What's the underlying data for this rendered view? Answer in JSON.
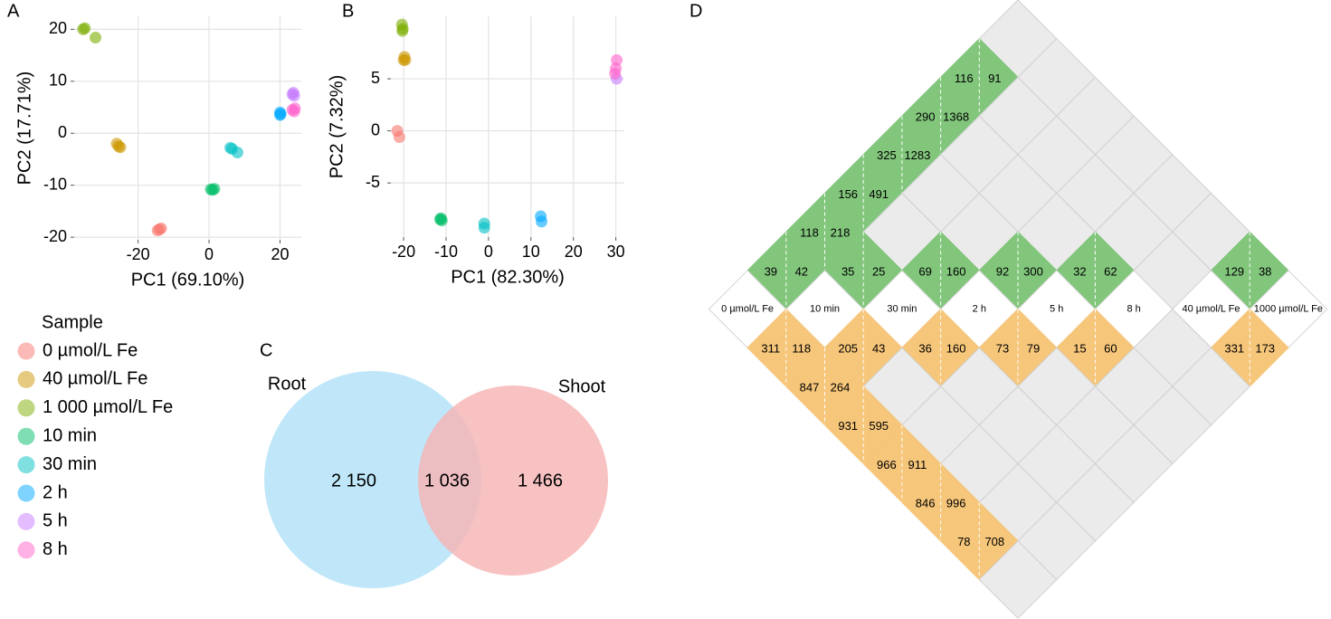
{
  "chart_data": [
    {
      "panel": "A",
      "type": "scatter",
      "x_label": "PC1 (69.10%)",
      "y_label": "PC2 (17.71%)",
      "xlim": [
        -38,
        26
      ],
      "ylim": [
        -20.5,
        22.5
      ],
      "xticks": [
        -20,
        0,
        20
      ],
      "yticks": [
        -20,
        -10,
        0,
        10,
        20
      ],
      "grid": true,
      "legend_title": "Sample",
      "series": [
        {
          "name": "0 µmol/L Fe",
          "color": "#F8766D",
          "x": [
            -14,
            -14.5,
            -13.5
          ],
          "values": [
            -18.5,
            -18.7,
            -18.3
          ]
        },
        {
          "name": "40 µmol/L Fe",
          "color": "#CD9600",
          "x": [
            -26,
            -25.5,
            -25
          ],
          "values": [
            -2,
            -2.5,
            -2.7
          ]
        },
        {
          "name": "1 000 µmol/L Fe",
          "color": "#7CAE00",
          "x": [
            -35.5,
            -35,
            -32
          ],
          "values": [
            20,
            20.2,
            18.4
          ]
        },
        {
          "name": "10 min",
          "color": "#00BE67",
          "x": [
            0.5,
            1,
            1.5
          ],
          "values": [
            -10.8,
            -10.9,
            -10.7
          ]
        },
        {
          "name": "30 min",
          "color": "#00BFC4",
          "x": [
            6,
            6.5,
            8
          ],
          "values": [
            -2.8,
            -3,
            -3.7
          ]
        },
        {
          "name": "2 h",
          "color": "#00A9FF",
          "x": [
            20,
            20,
            20.2
          ],
          "values": [
            3.5,
            4,
            3.7
          ]
        },
        {
          "name": "5 h",
          "color": "#C77CFF",
          "x": [
            23.8,
            24,
            23.5
          ],
          "values": [
            7.8,
            7.2,
            7.5
          ]
        },
        {
          "name": "8 h",
          "color": "#FF61CC",
          "x": [
            23.5,
            24,
            24.2
          ],
          "values": [
            4.5,
            4.2,
            4.8
          ]
        }
      ]
    },
    {
      "panel": "B",
      "type": "scatter",
      "x_label": "PC1 (82.30%)",
      "y_label": "PC2 (7.32%)",
      "xlim": [
        -23,
        32
      ],
      "ylim": [
        -10.2,
        11
      ],
      "xticks": [
        -20,
        -10,
        0,
        10,
        20,
        30
      ],
      "yticks": [
        -5,
        0,
        5
      ],
      "grid": true,
      "series": [
        {
          "color": "#F8766D",
          "x": [
            -21.5,
            -21
          ],
          "values": [
            0,
            -0.6
          ]
        },
        {
          "color": "#CD9600",
          "x": [
            -20,
            -19.8,
            -19.6
          ],
          "values": [
            6.8,
            7.1,
            6.8
          ]
        },
        {
          "color": "#7CAE00",
          "x": [
            -20.4,
            -20.2,
            -20.3
          ],
          "values": [
            10.2,
            9.8,
            9.6
          ]
        },
        {
          "color": "#00BE67",
          "x": [
            -11.4,
            -11,
            -11.2
          ],
          "values": [
            -8.5,
            -8.6,
            -8.4
          ]
        },
        {
          "color": "#00BFC4",
          "x": [
            -1,
            -1
          ],
          "values": [
            -8.9,
            -9.3
          ]
        },
        {
          "color": "#00A9FF",
          "x": [
            12.3,
            12.5
          ],
          "values": [
            -8.2,
            -8.7
          ]
        },
        {
          "color": "#C77CFF",
          "x": [
            30.2
          ],
          "values": [
            5
          ]
        },
        {
          "color": "#FF61CC",
          "x": [
            29.8,
            30,
            30.2
          ],
          "values": [
            5.5,
            6,
            6.8
          ]
        }
      ]
    },
    {
      "panel": "C",
      "type": "venn",
      "categories": [
        "Root",
        "Shoot"
      ],
      "values": [
        2150,
        1466
      ],
      "value_labels": [
        "2 150",
        "1 466"
      ],
      "colors": [
        "#bfe7f9",
        "#f7b3b3"
      ],
      "overlap": 1036,
      "overlap_label": "1 036"
    },
    {
      "panel": "D",
      "type": "matrix",
      "categories": [
        "0 µmol/L Fe",
        "10 min",
        "30 min",
        "2 h",
        "5 h",
        "8 h",
        "40 µmol/L Fe",
        "1000 µmol/L Fe"
      ],
      "upper_color": "#82c67c",
      "lower_color": "#f6c67a",
      "upper": [
        [
          null,
          [
            39,
            42
          ],
          [
            118,
            218
          ],
          [
            156,
            491
          ],
          [
            325,
            1283
          ],
          [
            290,
            1368
          ],
          [
            116,
            91
          ],
          null
        ],
        [
          null,
          null,
          [
            35,
            25
          ],
          null,
          null,
          null,
          null,
          null
        ],
        [
          null,
          null,
          null,
          [
            69,
            160
          ],
          null,
          null,
          null,
          null
        ],
        [
          null,
          null,
          null,
          null,
          [
            92,
            300
          ],
          null,
          null,
          null
        ],
        [
          null,
          null,
          null,
          null,
          null,
          [
            32,
            62
          ],
          null,
          null
        ],
        [
          null,
          null,
          null,
          null,
          null,
          null,
          null,
          null
        ],
        [
          null,
          null,
          null,
          null,
          null,
          null,
          null,
          [
            129,
            38
          ]
        ],
        [
          null,
          null,
          null,
          null,
          null,
          null,
          null,
          null
        ]
      ],
      "lower": [
        [
          null,
          [
            311,
            118
          ],
          [
            847,
            264
          ],
          [
            931,
            595
          ],
          [
            966,
            911
          ],
          [
            846,
            996
          ],
          [
            78,
            708
          ],
          null
        ],
        [
          null,
          null,
          [
            205,
            43
          ],
          null,
          null,
          null,
          null,
          null
        ],
        [
          null,
          null,
          null,
          [
            36,
            160
          ],
          null,
          null,
          null,
          null
        ],
        [
          null,
          null,
          null,
          null,
          [
            73,
            79
          ],
          null,
          null,
          null
        ],
        [
          null,
          null,
          null,
          null,
          null,
          [
            15,
            60
          ],
          null,
          null
        ],
        [
          null,
          null,
          null,
          null,
          null,
          null,
          null,
          null
        ],
        [
          null,
          null,
          null,
          null,
          null,
          null,
          null,
          [
            331,
            173
          ]
        ],
        [
          null,
          null,
          null,
          null,
          null,
          null,
          null,
          null
        ]
      ]
    }
  ]
}
